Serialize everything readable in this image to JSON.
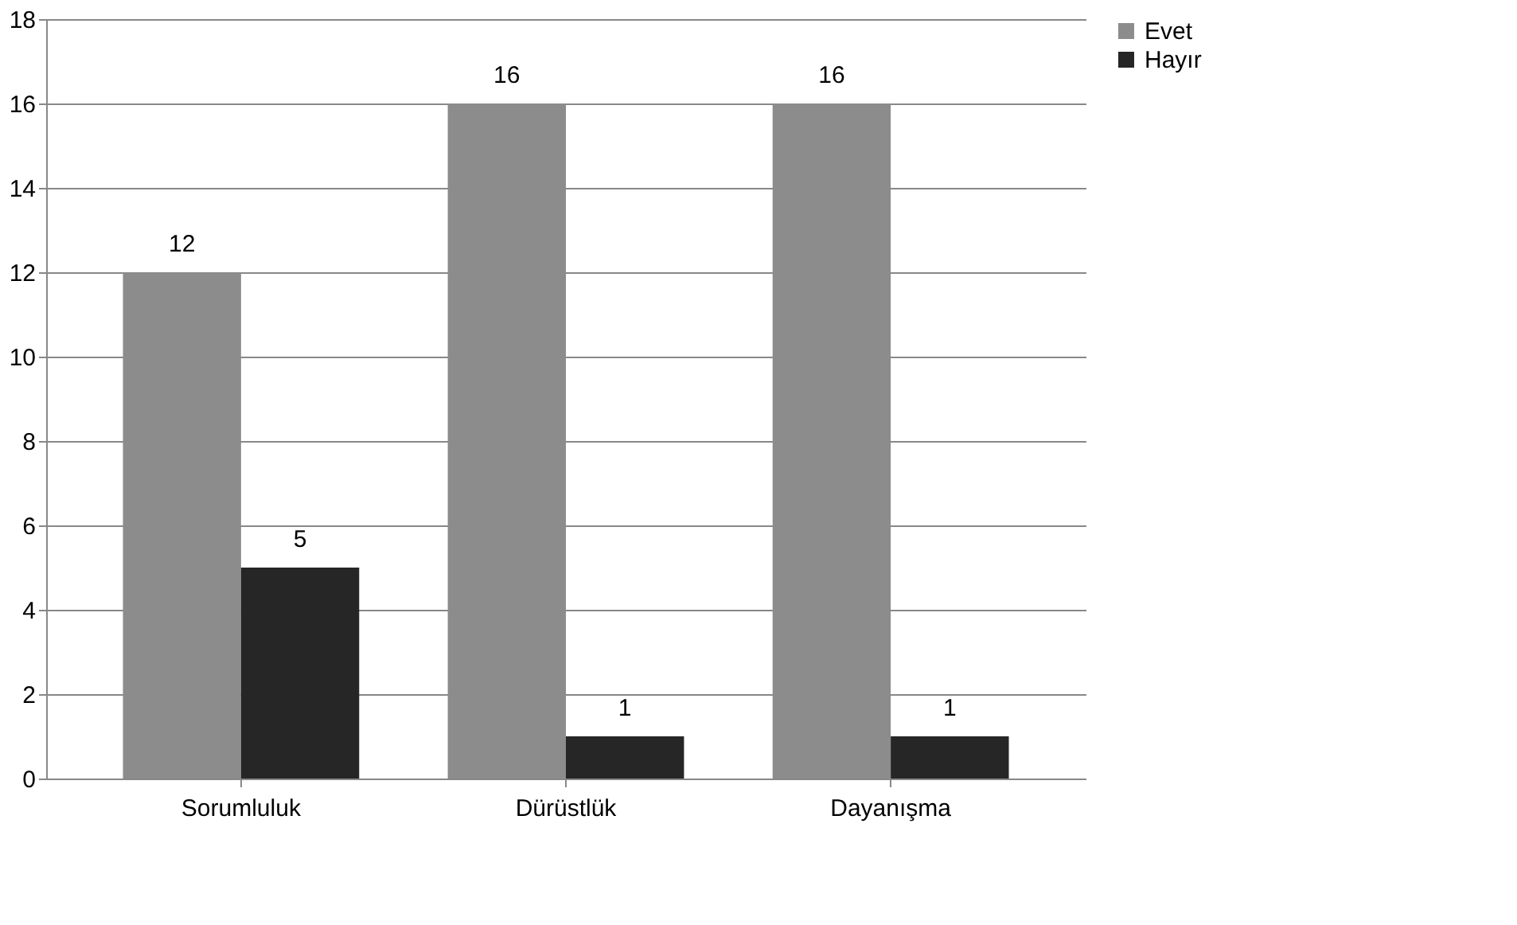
{
  "chart_data": {
    "type": "bar",
    "categories": [
      "Sorumluluk",
      "Dürüstlük",
      "Dayanışma"
    ],
    "series": [
      {
        "name": "Evet",
        "color": "#8c8c8c",
        "values": [
          12,
          16,
          16
        ]
      },
      {
        "name": "Hayır",
        "color": "#262626",
        "values": [
          5,
          1,
          1
        ]
      }
    ],
    "ylim": [
      0,
      18
    ],
    "yticks": [
      0,
      2,
      4,
      6,
      8,
      10,
      12,
      14,
      16,
      18
    ],
    "grid": "y",
    "legend": "right",
    "data_labels": true
  }
}
